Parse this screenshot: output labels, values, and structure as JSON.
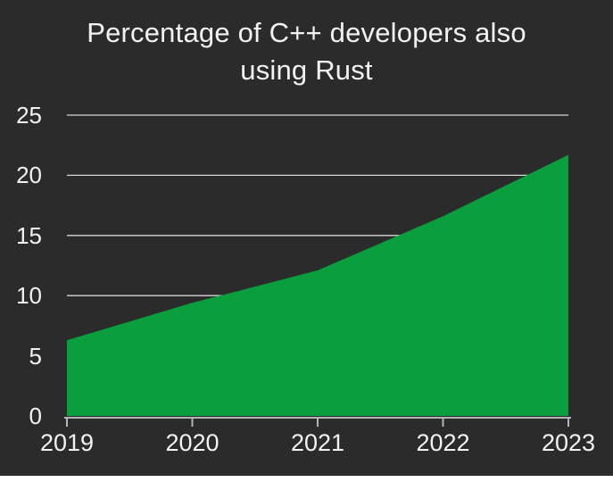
{
  "page": {
    "background": "#ffffff",
    "card_background": "#2b2b2b"
  },
  "title": {
    "line1": "Percentage of C++ developers also",
    "line2": "using Rust"
  },
  "chart_data": {
    "type": "area",
    "title": "Percentage of C++ developers also using Rust",
    "x": [
      "2019",
      "2020",
      "2021",
      "2022",
      "2023"
    ],
    "values": [
      6.3,
      9.4,
      12.1,
      16.6,
      21.7
    ],
    "xlabel": "",
    "ylabel": "",
    "ylim": [
      0,
      25
    ],
    "yticks": [
      0,
      5,
      10,
      15,
      20,
      25
    ],
    "grid": true,
    "legend": false,
    "colors": {
      "area": "#0a9e3f",
      "background": "#2b2b2b",
      "text": "#f2f2f2",
      "gridline": "#d6d6d6",
      "axis": "#b5b5b5"
    }
  }
}
